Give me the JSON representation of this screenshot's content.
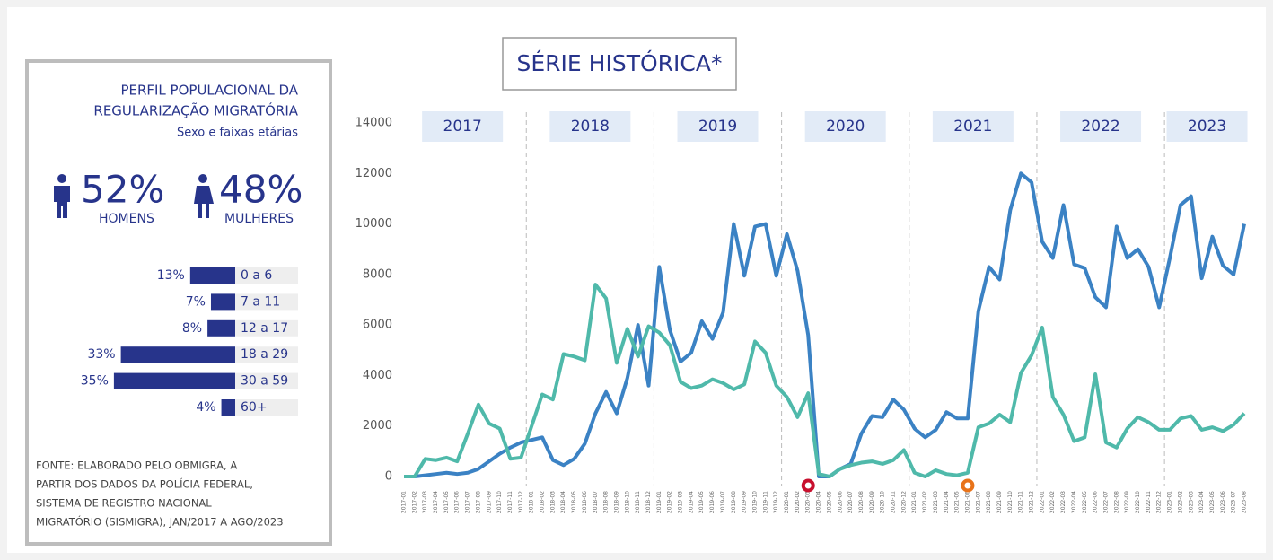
{
  "panel": {
    "title_lines": [
      "PERFIL POPULACIONAL DA",
      "REGULARIZAÇÃO MIGRATÓRIA"
    ],
    "subtitle": "Sexo e faixas etárias",
    "sex": [
      {
        "label": "52%",
        "name": "HOMENS"
      },
      {
        "label": "48%",
        "name": "MULHERES"
      }
    ],
    "age": {
      "type": "bar",
      "categories": [
        "0 a 6",
        "7 a 11",
        "12 a 17",
        "18 a 29",
        "30 a 59",
        "60+"
      ],
      "values": [
        13,
        7,
        8,
        33,
        35,
        4
      ],
      "value_labels": [
        "13%",
        "7%",
        "8%",
        "33%",
        "35%",
        "4%"
      ],
      "color": "#27348b"
    },
    "source_lines": [
      "FONTE: ELABORADO PELO OBMIGRA, A",
      "PARTIR DOS DADOS DA POLÍCIA FEDERAL,",
      "SISTEMA DE REGISTRO NACIONAL",
      "MIGRATÓRIO (SISMIGRA), JAN/2017 A AGO/2023"
    ]
  },
  "chart_data": {
    "type": "line",
    "title": "SÉRIE HISTÓRICA*",
    "x": [
      "2017-01",
      "2017-02",
      "2017-03",
      "2017-04",
      "2017-05",
      "2017-06",
      "2017-07",
      "2017-08",
      "2017-09",
      "2017-10",
      "2017-11",
      "2017-12",
      "2018-01",
      "2018-02",
      "2018-03",
      "2018-04",
      "2018-05",
      "2018-06",
      "2018-07",
      "2018-08",
      "2018-09",
      "2018-10",
      "2018-11",
      "2018-12",
      "2019-01",
      "2019-02",
      "2019-03",
      "2019-04",
      "2019-05",
      "2019-06",
      "2019-07",
      "2019-08",
      "2019-09",
      "2019-10",
      "2019-11",
      "2019-12",
      "2020-01",
      "2020-02",
      "2020-03",
      "2020-04",
      "2020-05",
      "2020-06",
      "2020-07",
      "2020-08",
      "2020-09",
      "2020-10",
      "2020-11",
      "2020-12",
      "2021-01",
      "2021-02",
      "2021-03",
      "2021-04",
      "2021-05",
      "2021-06",
      "2021-07",
      "2021-08",
      "2021-09",
      "2021-10",
      "2021-11",
      "2021-12",
      "2022-01",
      "2022-02",
      "2022-03",
      "2022-04",
      "2022-05",
      "2022-06",
      "2022-07",
      "2022-08",
      "2022-09",
      "2022-10",
      "2022-11",
      "2022-12",
      "2023-01",
      "2023-02",
      "2023-03",
      "2023-04",
      "2023-05",
      "2023-06",
      "2023-07",
      "2023-08"
    ],
    "series": [
      {
        "color": "#3b82c4",
        "values": [
          0,
          0,
          50,
          100,
          150,
          100,
          150,
          300,
          600,
          900,
          1150,
          1350,
          1450,
          1550,
          650,
          450,
          700,
          1300,
          2500,
          3350,
          2500,
          3900,
          6000,
          3600,
          8300,
          5800,
          4550,
          4900,
          6150,
          5450,
          6500,
          10000,
          7950,
          9900,
          10000,
          7950,
          9600,
          8150,
          5600,
          0,
          0,
          300,
          500,
          1700,
          2400,
          2350,
          3050,
          2650,
          1900,
          1550,
          1850,
          2550,
          2300,
          2300,
          6550,
          8300,
          7800,
          10550,
          12000,
          11650,
          9300,
          8650,
          10750,
          8400,
          8250,
          7100,
          6700,
          9900,
          8650,
          9000,
          8300,
          6700,
          8650,
          10750,
          11100,
          7850,
          9500,
          8350,
          8000,
          10000
        ]
      },
      {
        "color": "#4fb9aa",
        "values": [
          0,
          0,
          700,
          650,
          750,
          600,
          1700,
          2850,
          2100,
          1900,
          700,
          750,
          2000,
          3250,
          3050,
          4850,
          4750,
          4600,
          7600,
          7050,
          4500,
          5850,
          4750,
          5950,
          5700,
          5200,
          3750,
          3500,
          3600,
          3850,
          3700,
          3450,
          3650,
          5350,
          4900,
          3600,
          3150,
          2350,
          3300,
          100,
          0,
          300,
          450,
          550,
          600,
          500,
          650,
          1050,
          150,
          0,
          250,
          100,
          50,
          150,
          1950,
          2100,
          2450,
          2150,
          4100,
          4800,
          5900,
          3150,
          2450,
          1400,
          1550,
          4050,
          1350,
          1150,
          1900,
          2350,
          2150,
          1850,
          1850,
          2300,
          2400,
          1850,
          1950,
          1800,
          2050,
          2500
        ]
      }
    ],
    "ylim": [
      0,
      14000
    ],
    "yticks": [
      0,
      2000,
      4000,
      6000,
      8000,
      10000,
      12000,
      14000
    ],
    "year_labels": [
      "2017",
      "2018",
      "2019",
      "2020",
      "2021",
      "2022",
      "2023"
    ],
    "markers": [
      {
        "at": "2020-03",
        "color": "#c8102e"
      },
      {
        "at": "2021-06",
        "color": "#e8731a"
      }
    ]
  }
}
